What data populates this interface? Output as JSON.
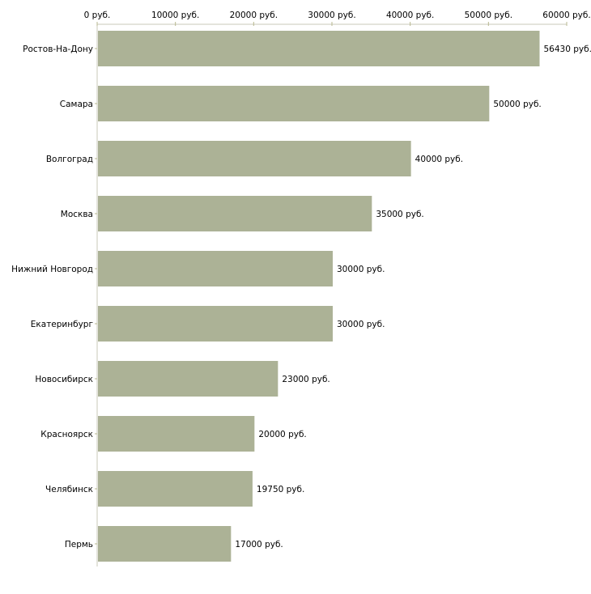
{
  "chart_data": {
    "type": "bar",
    "orientation": "horizontal",
    "title": "",
    "xlabel": "",
    "ylabel": "",
    "unit_suffix": " руб.",
    "xlim": [
      0,
      60000
    ],
    "x_ticks": [
      0,
      10000,
      20000,
      30000,
      40000,
      50000,
      60000
    ],
    "x_tick_labels": [
      "0 руб.",
      "10000 руб.",
      "20000 руб.",
      "30000 руб.",
      "40000 руб.",
      "50000 руб.",
      "60000 руб."
    ],
    "axis_position": "top",
    "grid": false,
    "categories": [
      "Ростов-На-Дону",
      "Самара",
      "Волгоград",
      "Москва",
      "Нижний Новгород",
      "Екатеринбург",
      "Новосибирск",
      "Красноярск",
      "Челябинск",
      "Пермь"
    ],
    "values": [
      56430,
      50000,
      40000,
      35000,
      30000,
      30000,
      23000,
      20000,
      19750,
      17000
    ],
    "data_labels": [
      "56430 руб.",
      "50000 руб.",
      "40000 руб.",
      "35000 руб.",
      "30000 руб.",
      "30000 руб.",
      "23000 руб.",
      "20000 руб.",
      "19750 руб.",
      "17000 руб."
    ],
    "colors": {
      "bar": "#acb296",
      "axis": "#c8c8b8",
      "tick": "#b8b890"
    }
  }
}
